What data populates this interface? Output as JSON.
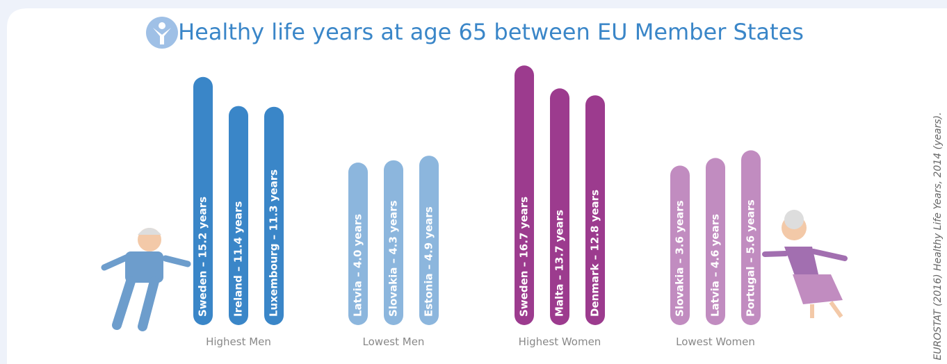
{
  "chart_data": {
    "type": "bar",
    "title": "Healthy life years at age 65 between EU Member States",
    "source": "EUROSTAT (2016) Healthy Life Years, 2014 (years).",
    "series": [
      {
        "name": "Highest Men",
        "color": "#3a86c8",
        "values": [
          15.2,
          11.4,
          11.3
        ],
        "value_labels": [
          "Sweden – 15.2 years",
          "Ireland – 11.4 years",
          "Luxembourg – 11.3 years"
        ]
      },
      {
        "name": "Lowest Men",
        "color": "#8cb6dd",
        "values": [
          4.0,
          4.3,
          4.9
        ],
        "value_labels": [
          "Latvia – 4.0 years",
          "Slovakia – 4.3 years",
          "Estonia – 4.9 years"
        ]
      },
      {
        "name": "Highest Women",
        "color": "#9c3b8e",
        "values": [
          16.7,
          13.7,
          12.8
        ],
        "value_labels": [
          "Sweden – 16.7 years",
          "Malta – 13.7 years",
          "Denmark – 12.8 years"
        ]
      },
      {
        "name": "Lowest Women",
        "color": "#c18cc0",
        "values": [
          3.6,
          4.6,
          5.6
        ],
        "value_labels": [
          "Slovakia – 3.6 years",
          "Latvia – 4.6 years",
          "Portugal – 5.6 years"
        ]
      }
    ]
  }
}
